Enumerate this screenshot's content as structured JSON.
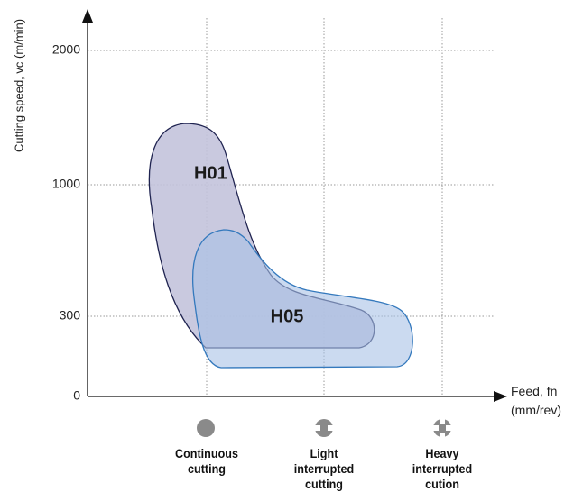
{
  "chart_data": {
    "type": "region-map",
    "y_label": "Cutting speed, vc (m/min)",
    "x_label": "Feed, fn (mm/rev)",
    "yticks": [
      0,
      300,
      1000,
      2000
    ],
    "categories": [
      "Continuous cutting",
      "Light interrupted cutting",
      "Heavy interrupted cution"
    ],
    "regions": [
      {
        "name": "H01"
      },
      {
        "name": "H05"
      }
    ],
    "grid": true
  }
}
